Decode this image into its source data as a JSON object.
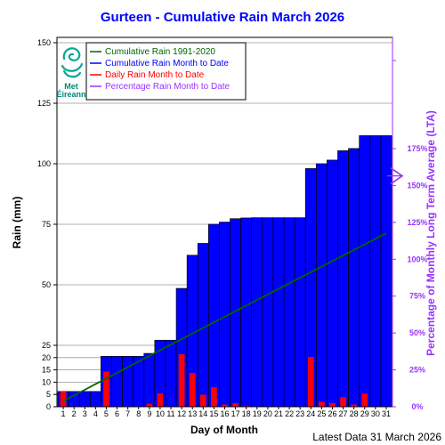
{
  "chart_data": {
    "type": "bar",
    "title": "Gurteen - Cumulative Rain March   2026",
    "xlabel": "Day of Month",
    "ylabel": "Rain (mm)",
    "ylabel_right": "Percentage  of Monthly Long Term Average (LTA)",
    "footer": "Latest Data 31 March 2026",
    "logo_text": [
      "Met",
      "Éireann"
    ],
    "x": [
      1,
      2,
      3,
      4,
      5,
      6,
      7,
      8,
      9,
      10,
      11,
      12,
      13,
      14,
      15,
      16,
      17,
      18,
      19,
      20,
      21,
      22,
      23,
      24,
      25,
      26,
      27,
      28,
      29,
      30,
      31
    ],
    "x_tick_labels": [
      "1",
      "2",
      "3",
      "4",
      "5",
      "6",
      "7",
      "8",
      "9",
      "10",
      "11",
      "12",
      "13",
      "14",
      "15",
      "16",
      "17",
      "18",
      "19",
      "20",
      "21",
      "22",
      "23",
      "24",
      "25",
      "26",
      "27",
      "28",
      "29",
      "30",
      "31"
    ],
    "ylim": [
      0,
      150
    ],
    "y_ticks": [
      0,
      5,
      10,
      15,
      20,
      25,
      50,
      75,
      100,
      125,
      150
    ],
    "y_tick_labels": [
      "0",
      "5",
      "10",
      "15",
      "20",
      "25",
      "50",
      "75",
      "100",
      "125",
      "150"
    ],
    "y2_ticks": [
      0,
      25,
      50,
      75,
      100,
      125,
      150,
      175
    ],
    "y2_tick_labels": [
      "0%",
      "25%",
      "50%",
      "75%",
      "100%",
      "125%",
      "150%",
      "175%"
    ],
    "grid": true,
    "legend_position": "top-left",
    "legend": [
      {
        "label": "Cumulative Rain 1991-2020",
        "color": "#006400"
      },
      {
        "label": "Cumulative Rain Month to Date",
        "color": "#0000ff"
      },
      {
        "label": "Daily Rain Month to Date",
        "color": "#ff0000"
      },
      {
        "label": "Percentage Rain Month to Date",
        "color": "#9933ff"
      }
    ],
    "series": [
      {
        "name": "Cumulative Rain Month to Date",
        "color": "#0000ff",
        "values": [
          6.2,
          6.2,
          6.2,
          6.2,
          20.5,
          20.5,
          20.5,
          20.5,
          21.7,
          27.1,
          27.1,
          48.5,
          62.2,
          67.1,
          75.0,
          75.9,
          77.3,
          77.6,
          77.7,
          77.7,
          77.7,
          77.7,
          77.7,
          98.0,
          100.0,
          101.5,
          105.4,
          106.3,
          111.6,
          111.6,
          111.6
        ]
      },
      {
        "name": "Daily Rain Month to Date",
        "color": "#ff0000",
        "values": [
          6.2,
          0,
          0,
          0,
          14.3,
          0,
          0,
          0,
          1.2,
          5.4,
          0,
          21.4,
          13.7,
          4.9,
          7.9,
          0.9,
          1.4,
          0.3,
          0.1,
          0,
          0,
          0,
          0,
          20.3,
          2.0,
          1.5,
          3.9,
          0.9,
          5.3,
          0,
          0
        ]
      },
      {
        "name": "Cumulative Rain 1991-2020",
        "color": "#006400",
        "values": [
          2.3,
          4.6,
          6.9,
          9.2,
          11.5,
          13.8,
          16.1,
          18.4,
          20.7,
          23.0,
          25.3,
          27.6,
          29.9,
          32.2,
          34.5,
          36.8,
          39.1,
          41.4,
          43.7,
          46.0,
          48.3,
          50.6,
          52.9,
          55.2,
          57.5,
          59.8,
          62.1,
          64.4,
          66.7,
          69.0,
          71.3
        ]
      }
    ],
    "percentage_month_to_date": 156.5
  }
}
